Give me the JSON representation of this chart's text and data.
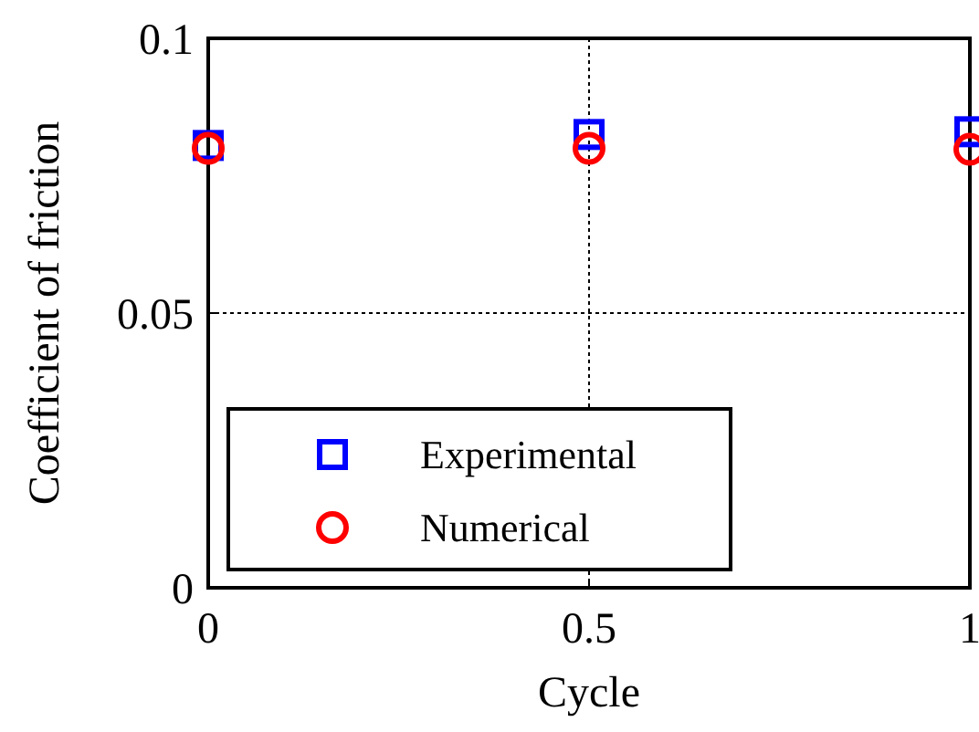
{
  "chart_data": {
    "type": "scatter",
    "xlabel": "Cycle",
    "ylabel": "Coefficient of friction",
    "x": [
      0,
      0.5,
      1
    ],
    "series": [
      {
        "name": "Experimental",
        "color": "#0000ff",
        "marker": "square",
        "values": [
          0.0805,
          0.0825,
          0.083
        ]
      },
      {
        "name": "Numerical",
        "color": "#ff0000",
        "marker": "circle",
        "values": [
          0.08,
          0.08,
          0.0798
        ]
      }
    ],
    "xlim": [
      0,
      1
    ],
    "xticks": [
      0,
      0.5,
      1
    ],
    "ylim": [
      0,
      0.1
    ],
    "yticks": [
      0,
      0.05,
      0.1
    ],
    "grid": true,
    "legend": "bottom left"
  }
}
